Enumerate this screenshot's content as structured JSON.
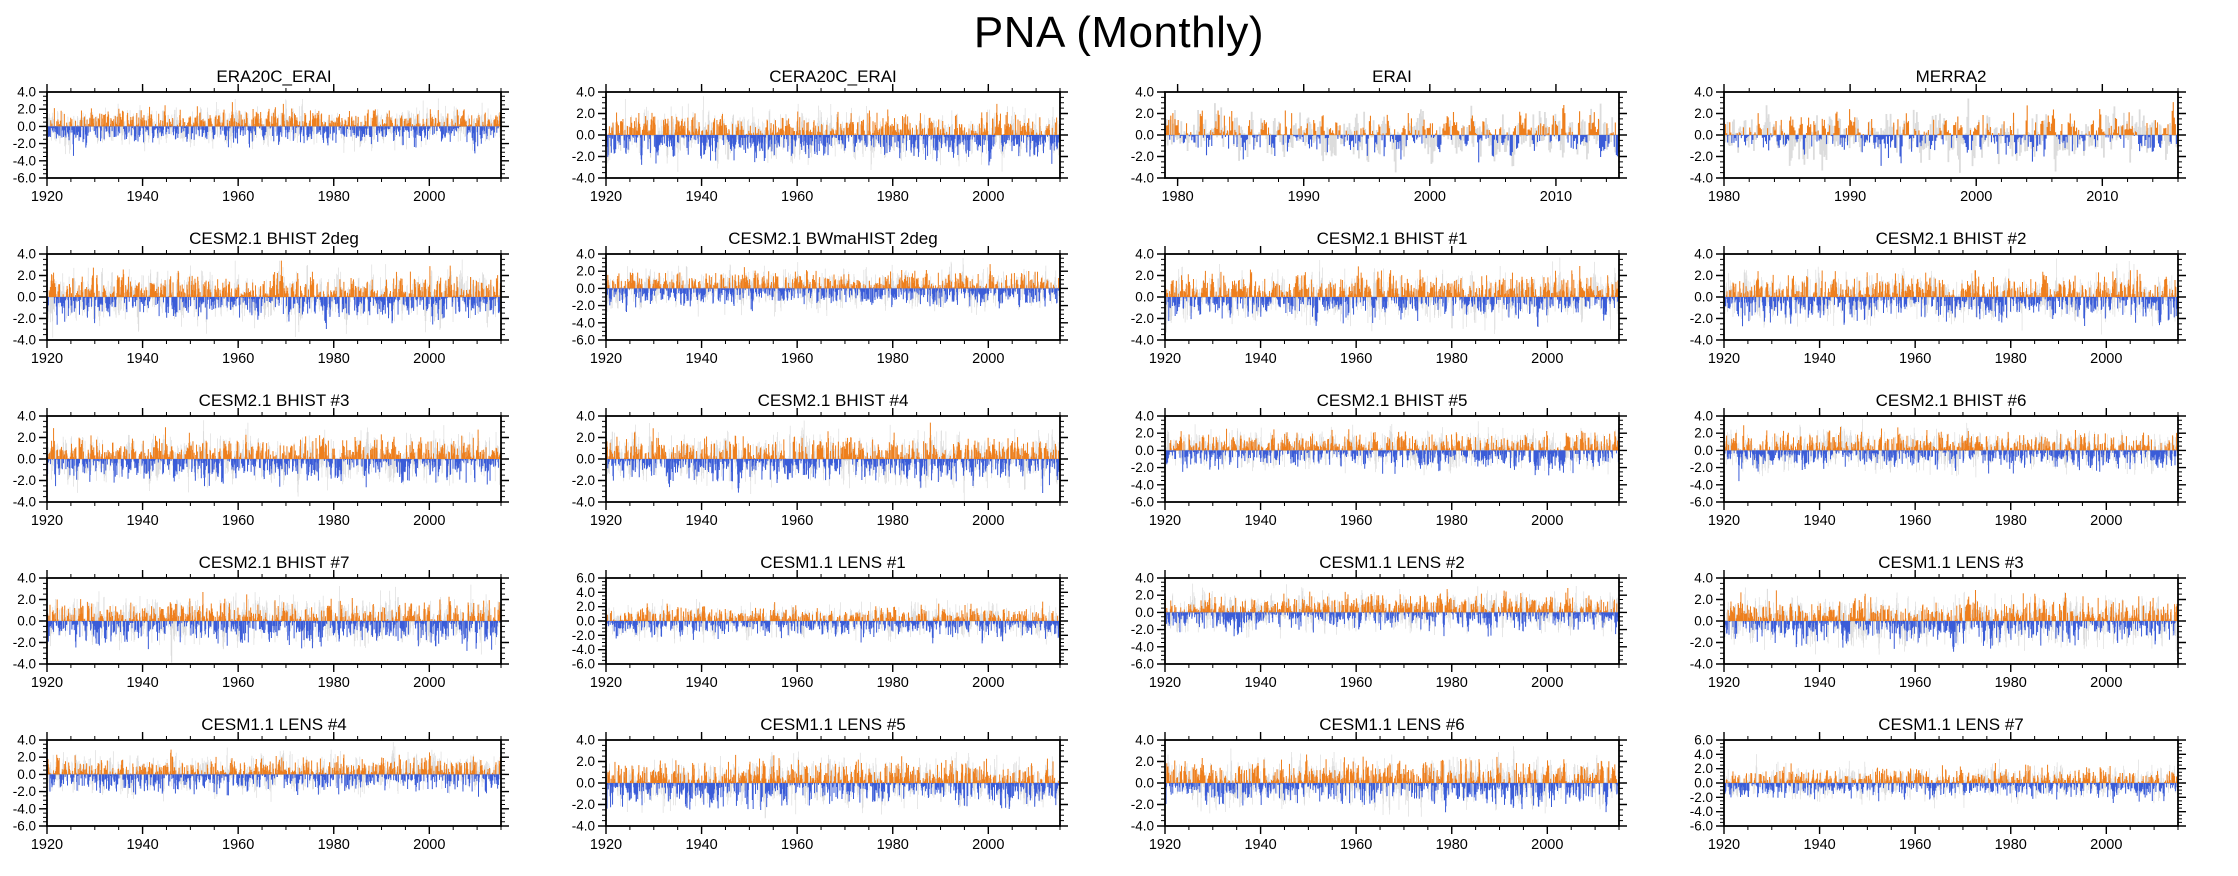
{
  "title": "PNA (Monthly)",
  "colors": {
    "positive": "#ee7f1d",
    "negative": "#3a5cd8",
    "background_series": "#dcdcdc",
    "zero_line": "#b4b4b4",
    "axis": "#000000"
  },
  "series_note": "Each panel: monthly PNA index bar series (orange = positive anomalies, blue = negative anomalies) drawn over a light-grey reference bar series; values fluctuate mostly within +/-2 with peaks near +/-3.5; exact monthly values are unlabeled in the figure and are synthesized deterministically from the per-panel seed.",
  "chart_data": [
    {
      "type": "bar",
      "title": "ERA20C_ERAI",
      "x_range": [
        1920,
        2015
      ],
      "x_ticks": [
        1920,
        1940,
        1960,
        1980,
        2000
      ],
      "x_minor_step": 5,
      "y_range": [
        -6,
        4
      ],
      "y_ticks": [
        4,
        2,
        0,
        -2,
        -4,
        -6
      ],
      "y_minor_step": 0.5,
      "seed": 11
    },
    {
      "type": "bar",
      "title": "CERA20C_ERAI",
      "x_range": [
        1920,
        2015
      ],
      "x_ticks": [
        1920,
        1940,
        1960,
        1980,
        2000
      ],
      "x_minor_step": 5,
      "y_range": [
        -4,
        4
      ],
      "y_ticks": [
        4,
        2,
        0,
        -2,
        -4
      ],
      "y_minor_step": 0.5,
      "seed": 22
    },
    {
      "type": "bar",
      "title": "ERAI",
      "x_range": [
        1979,
        2015
      ],
      "x_ticks": [
        1980,
        1990,
        2000,
        2010
      ],
      "x_minor_step": 2,
      "y_range": [
        -4,
        4
      ],
      "y_ticks": [
        4,
        2,
        0,
        -2,
        -4
      ],
      "y_minor_step": 0.5,
      "seed": 33
    },
    {
      "type": "bar",
      "title": "MERRA2",
      "x_range": [
        1980,
        2016
      ],
      "x_ticks": [
        1980,
        1990,
        2000,
        2010
      ],
      "x_minor_step": 2,
      "y_range": [
        -4,
        4
      ],
      "y_ticks": [
        4,
        2,
        0,
        -2,
        -4
      ],
      "y_minor_step": 0.5,
      "seed": 44
    },
    {
      "type": "bar",
      "title": "CESM2.1 BHIST 2deg",
      "x_range": [
        1920,
        2015
      ],
      "x_ticks": [
        1920,
        1940,
        1960,
        1980,
        2000
      ],
      "x_minor_step": 5,
      "y_range": [
        -4,
        4
      ],
      "y_ticks": [
        4,
        2,
        0,
        -2,
        -4
      ],
      "y_minor_step": 0.5,
      "seed": 55
    },
    {
      "type": "bar",
      "title": "CESM2.1 BWmaHIST 2deg",
      "x_range": [
        1920,
        2015
      ],
      "x_ticks": [
        1920,
        1940,
        1960,
        1980,
        2000
      ],
      "x_minor_step": 5,
      "y_range": [
        -6,
        4
      ],
      "y_ticks": [
        4,
        2,
        0,
        -2,
        -4,
        -6
      ],
      "y_minor_step": 0.5,
      "seed": 66
    },
    {
      "type": "bar",
      "title": "CESM2.1 BHIST #1",
      "x_range": [
        1920,
        2015
      ],
      "x_ticks": [
        1920,
        1940,
        1960,
        1980,
        2000
      ],
      "x_minor_step": 5,
      "y_range": [
        -4,
        4
      ],
      "y_ticks": [
        4,
        2,
        0,
        -2,
        -4
      ],
      "y_minor_step": 0.5,
      "seed": 77
    },
    {
      "type": "bar",
      "title": "CESM2.1 BHIST #2",
      "x_range": [
        1920,
        2015
      ],
      "x_ticks": [
        1920,
        1940,
        1960,
        1980,
        2000
      ],
      "x_minor_step": 5,
      "y_range": [
        -4,
        4
      ],
      "y_ticks": [
        4,
        2,
        0,
        -2,
        -4
      ],
      "y_minor_step": 0.5,
      "seed": 88
    },
    {
      "type": "bar",
      "title": "CESM2.1 BHIST #3",
      "x_range": [
        1920,
        2015
      ],
      "x_ticks": [
        1920,
        1940,
        1960,
        1980,
        2000
      ],
      "x_minor_step": 5,
      "y_range": [
        -4,
        4
      ],
      "y_ticks": [
        4,
        2,
        0,
        -2,
        -4
      ],
      "y_minor_step": 0.5,
      "seed": 99
    },
    {
      "type": "bar",
      "title": "CESM2.1 BHIST #4",
      "x_range": [
        1920,
        2015
      ],
      "x_ticks": [
        1920,
        1940,
        1960,
        1980,
        2000
      ],
      "x_minor_step": 5,
      "y_range": [
        -4,
        4
      ],
      "y_ticks": [
        4,
        2,
        0,
        -2,
        -4
      ],
      "y_minor_step": 0.5,
      "seed": 110
    },
    {
      "type": "bar",
      "title": "CESM2.1 BHIST #5",
      "x_range": [
        1920,
        2015
      ],
      "x_ticks": [
        1920,
        1940,
        1960,
        1980,
        2000
      ],
      "x_minor_step": 5,
      "y_range": [
        -6,
        4
      ],
      "y_ticks": [
        4,
        2,
        0,
        -2,
        -4,
        -6
      ],
      "y_minor_step": 0.5,
      "seed": 121
    },
    {
      "type": "bar",
      "title": "CESM2.1 BHIST #6",
      "x_range": [
        1920,
        2015
      ],
      "x_ticks": [
        1920,
        1940,
        1960,
        1980,
        2000
      ],
      "x_minor_step": 5,
      "y_range": [
        -6,
        4
      ],
      "y_ticks": [
        4,
        2,
        0,
        -2,
        -4,
        -6
      ],
      "y_minor_step": 0.5,
      "seed": 132
    },
    {
      "type": "bar",
      "title": "CESM2.1 BHIST #7",
      "x_range": [
        1920,
        2015
      ],
      "x_ticks": [
        1920,
        1940,
        1960,
        1980,
        2000
      ],
      "x_minor_step": 5,
      "y_range": [
        -4,
        4
      ],
      "y_ticks": [
        4,
        2,
        0,
        -2,
        -4
      ],
      "y_minor_step": 0.5,
      "seed": 143
    },
    {
      "type": "bar",
      "title": "CESM1.1 LENS #1",
      "x_range": [
        1920,
        2015
      ],
      "x_ticks": [
        1920,
        1940,
        1960,
        1980,
        2000
      ],
      "x_minor_step": 5,
      "y_range": [
        -6,
        6
      ],
      "y_ticks": [
        6,
        4,
        2,
        0,
        -2,
        -4,
        -6
      ],
      "y_minor_step": 0.5,
      "seed": 154
    },
    {
      "type": "bar",
      "title": "CESM1.1 LENS #2",
      "x_range": [
        1920,
        2015
      ],
      "x_ticks": [
        1920,
        1940,
        1960,
        1980,
        2000
      ],
      "x_minor_step": 5,
      "y_range": [
        -6,
        4
      ],
      "y_ticks": [
        4,
        2,
        0,
        -2,
        -4,
        -6
      ],
      "y_minor_step": 0.5,
      "seed": 165
    },
    {
      "type": "bar",
      "title": "CESM1.1 LENS #3",
      "x_range": [
        1920,
        2015
      ],
      "x_ticks": [
        1920,
        1940,
        1960,
        1980,
        2000
      ],
      "x_minor_step": 5,
      "y_range": [
        -4,
        4
      ],
      "y_ticks": [
        4,
        2,
        0,
        -2,
        -4
      ],
      "y_minor_step": 0.5,
      "seed": 176
    },
    {
      "type": "bar",
      "title": "CESM1.1 LENS #4",
      "x_range": [
        1920,
        2015
      ],
      "x_ticks": [
        1920,
        1940,
        1960,
        1980,
        2000
      ],
      "x_minor_step": 5,
      "y_range": [
        -6,
        4
      ],
      "y_ticks": [
        4,
        2,
        0,
        -2,
        -4,
        -6
      ],
      "y_minor_step": 0.5,
      "seed": 187
    },
    {
      "type": "bar",
      "title": "CESM1.1 LENS #5",
      "x_range": [
        1920,
        2015
      ],
      "x_ticks": [
        1920,
        1940,
        1960,
        1980,
        2000
      ],
      "x_minor_step": 5,
      "y_range": [
        -4,
        4
      ],
      "y_ticks": [
        4,
        2,
        0,
        -2,
        -4
      ],
      "y_minor_step": 0.5,
      "seed": 198
    },
    {
      "type": "bar",
      "title": "CESM1.1 LENS #6",
      "x_range": [
        1920,
        2015
      ],
      "x_ticks": [
        1920,
        1940,
        1960,
        1980,
        2000
      ],
      "x_minor_step": 5,
      "y_range": [
        -4,
        4
      ],
      "y_ticks": [
        4,
        2,
        0,
        -2,
        -4
      ],
      "y_minor_step": 0.5,
      "seed": 209
    },
    {
      "type": "bar",
      "title": "CESM1.1 LENS #7",
      "x_range": [
        1920,
        2015
      ],
      "x_ticks": [
        1920,
        1940,
        1960,
        1980,
        2000
      ],
      "x_minor_step": 5,
      "y_range": [
        -6,
        6
      ],
      "y_ticks": [
        6,
        4,
        2,
        0,
        -2,
        -4,
        -6
      ],
      "y_minor_step": 0.5,
      "seed": 220
    }
  ]
}
